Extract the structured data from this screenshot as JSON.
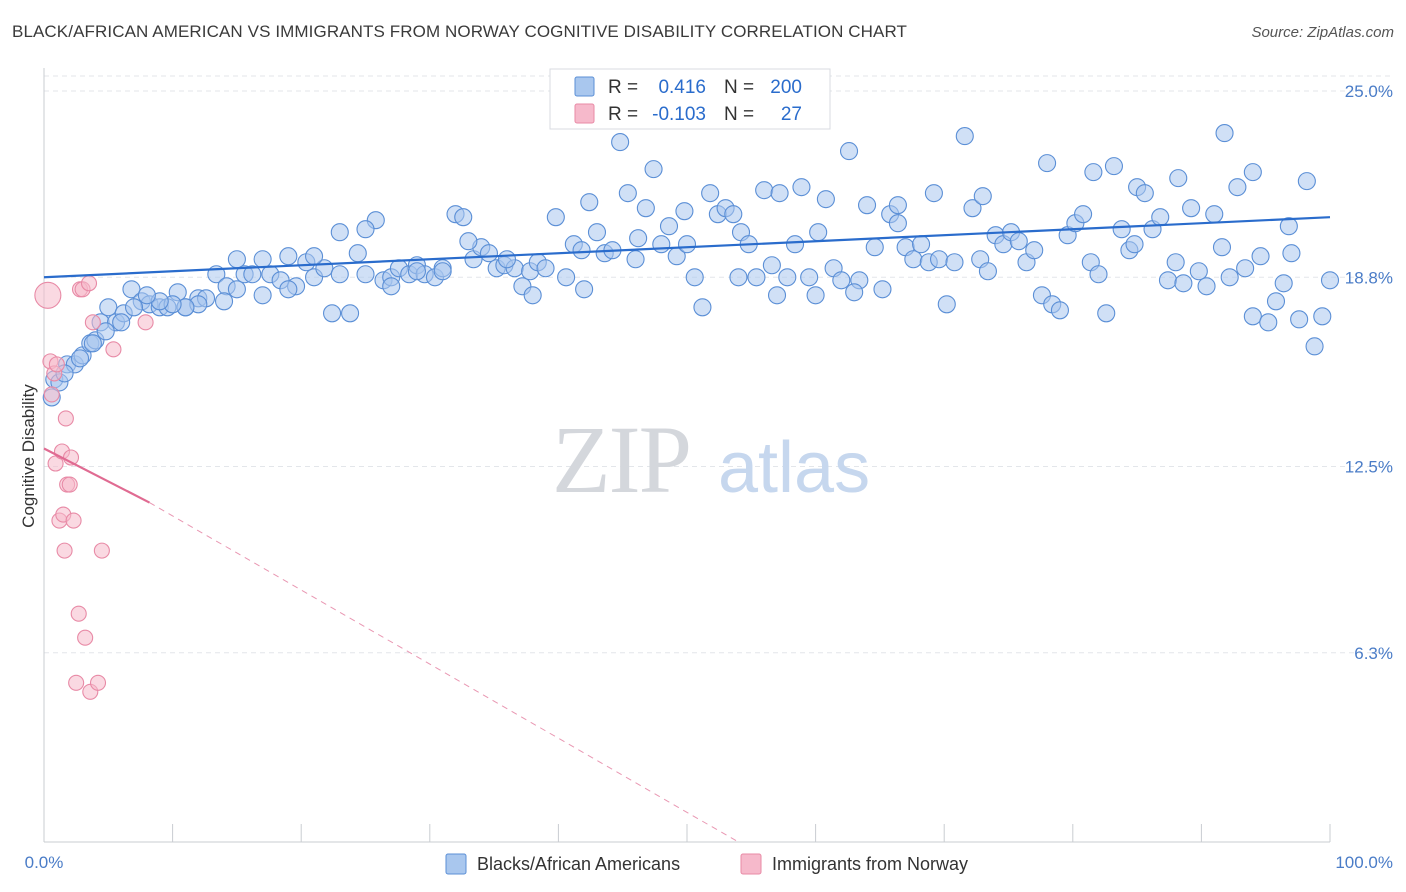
{
  "title": "BLACK/AFRICAN AMERICAN VS IMMIGRANTS FROM NORWAY COGNITIVE DISABILITY CORRELATION CHART",
  "source": "Source: ZipAtlas.com",
  "watermark": {
    "zip": "ZIP",
    "atlas": "atlas"
  },
  "colors": {
    "blue_fill": "#a9c7ee",
    "blue_stroke": "#5b8fd6",
    "blue_line": "#2a6ccc",
    "pink_fill": "#f6b9cb",
    "pink_stroke": "#e88aa6",
    "pink_line": "#e06b92",
    "axis_text": "#4a7cc7",
    "grid": "#e3e6ea"
  },
  "legend": {
    "rows": [
      {
        "r_label": "R =",
        "r_value": "0.416",
        "n_label": "N =",
        "n_value": "200"
      },
      {
        "r_label": "R =",
        "r_value": "-0.103",
        "n_label": "N =",
        "n_value": "27"
      }
    ]
  },
  "bottom_legend": [
    "Blacks/African Americans",
    "Immigrants from Norway"
  ],
  "chart_data": {
    "type": "scatter",
    "ylabel": "Cognitive Disability",
    "xlim": [
      0,
      100
    ],
    "ylim": [
      0,
      25.5
    ],
    "x_tick_labels": [
      "0.0%",
      "100.0%"
    ],
    "y_ticks": [
      6.3,
      12.5,
      18.8,
      25.0
    ],
    "y_tick_labels": [
      "6.3%",
      "12.5%",
      "18.8%",
      "25.0%"
    ],
    "grid": "horizontal dashed",
    "series": [
      {
        "name": "Blacks/African Americans",
        "r": 0.416,
        "n": 200,
        "trend": {
          "x": [
            0,
            100
          ],
          "y": [
            18.8,
            20.8
          ]
        },
        "points": [
          [
            0.8,
            15.4
          ],
          [
            0.6,
            14.8
          ],
          [
            1.2,
            15.3
          ],
          [
            1.8,
            15.9
          ],
          [
            2.4,
            15.9
          ],
          [
            3.0,
            16.2
          ],
          [
            3.6,
            16.6
          ],
          [
            4.0,
            16.7
          ],
          [
            4.4,
            17.3
          ],
          [
            5.0,
            17.8
          ],
          [
            5.6,
            17.3
          ],
          [
            6.2,
            17.6
          ],
          [
            6.8,
            18.4
          ],
          [
            7.6,
            18.0
          ],
          [
            8.2,
            17.9
          ],
          [
            9.0,
            17.8
          ],
          [
            9.6,
            17.8
          ],
          [
            10.4,
            18.3
          ],
          [
            11.0,
            17.8
          ],
          [
            12.0,
            18.1
          ],
          [
            12.6,
            18.1
          ],
          [
            13.4,
            18.9
          ],
          [
            14.2,
            18.5
          ],
          [
            15.0,
            19.4
          ],
          [
            15.6,
            18.9
          ],
          [
            16.2,
            18.9
          ],
          [
            17.0,
            18.2
          ],
          [
            17.6,
            18.9
          ],
          [
            18.4,
            18.7
          ],
          [
            19.0,
            19.5
          ],
          [
            19.6,
            18.5
          ],
          [
            20.4,
            19.3
          ],
          [
            21.0,
            18.8
          ],
          [
            21.8,
            19.1
          ],
          [
            22.4,
            17.6
          ],
          [
            23.0,
            18.9
          ],
          [
            23.8,
            17.6
          ],
          [
            24.4,
            19.6
          ],
          [
            25.0,
            18.9
          ],
          [
            25.8,
            20.7
          ],
          [
            26.4,
            18.7
          ],
          [
            27.0,
            18.8
          ],
          [
            27.6,
            19.1
          ],
          [
            28.4,
            18.9
          ],
          [
            29.0,
            19.2
          ],
          [
            29.6,
            18.9
          ],
          [
            30.4,
            18.8
          ],
          [
            31.0,
            19.1
          ],
          [
            32.0,
            20.9
          ],
          [
            32.6,
            20.8
          ],
          [
            33.4,
            19.4
          ],
          [
            34.0,
            19.8
          ],
          [
            34.6,
            19.6
          ],
          [
            35.2,
            19.1
          ],
          [
            35.8,
            19.2
          ],
          [
            36.6,
            19.1
          ],
          [
            37.2,
            18.5
          ],
          [
            37.8,
            19.0
          ],
          [
            38.4,
            19.3
          ],
          [
            39.0,
            19.1
          ],
          [
            39.8,
            20.8
          ],
          [
            40.6,
            18.8
          ],
          [
            41.2,
            19.9
          ],
          [
            41.8,
            19.7
          ],
          [
            42.4,
            21.3
          ],
          [
            43.0,
            20.3
          ],
          [
            43.6,
            19.6
          ],
          [
            44.2,
            19.7
          ],
          [
            44.8,
            23.3
          ],
          [
            45.4,
            21.6
          ],
          [
            46.2,
            20.1
          ],
          [
            46.8,
            21.1
          ],
          [
            47.4,
            22.4
          ],
          [
            48.0,
            19.9
          ],
          [
            48.6,
            20.5
          ],
          [
            49.2,
            19.5
          ],
          [
            49.8,
            21.0
          ],
          [
            50.6,
            18.8
          ],
          [
            51.2,
            17.8
          ],
          [
            51.8,
            21.6
          ],
          [
            52.4,
            20.9
          ],
          [
            53.0,
            21.1
          ],
          [
            53.6,
            20.9
          ],
          [
            54.2,
            20.3
          ],
          [
            54.8,
            19.9
          ],
          [
            55.4,
            18.8
          ],
          [
            56.0,
            21.7
          ],
          [
            56.6,
            19.2
          ],
          [
            57.2,
            21.6
          ],
          [
            57.8,
            18.8
          ],
          [
            58.4,
            19.9
          ],
          [
            58.9,
            21.8
          ],
          [
            59.5,
            18.8
          ],
          [
            60.2,
            20.3
          ],
          [
            60.8,
            21.4
          ],
          [
            61.4,
            19.1
          ],
          [
            62.0,
            18.7
          ],
          [
            62.6,
            23.0
          ],
          [
            63.4,
            18.7
          ],
          [
            64.0,
            21.2
          ],
          [
            64.6,
            19.8
          ],
          [
            65.2,
            18.4
          ],
          [
            65.8,
            20.9
          ],
          [
            66.4,
            21.2
          ],
          [
            67.0,
            19.8
          ],
          [
            67.6,
            19.4
          ],
          [
            68.2,
            19.9
          ],
          [
            68.8,
            19.3
          ],
          [
            69.6,
            19.4
          ],
          [
            70.2,
            17.9
          ],
          [
            70.8,
            19.3
          ],
          [
            71.6,
            23.5
          ],
          [
            72.2,
            21.1
          ],
          [
            72.8,
            19.4
          ],
          [
            73.4,
            19.0
          ],
          [
            74.0,
            20.2
          ],
          [
            74.6,
            19.9
          ],
          [
            75.2,
            20.3
          ],
          [
            75.8,
            20.0
          ],
          [
            76.4,
            19.3
          ],
          [
            77.0,
            19.7
          ],
          [
            77.6,
            18.2
          ],
          [
            78.4,
            17.9
          ],
          [
            79.0,
            17.7
          ],
          [
            79.6,
            20.2
          ],
          [
            80.2,
            20.6
          ],
          [
            80.8,
            20.9
          ],
          [
            81.4,
            19.3
          ],
          [
            82.0,
            18.9
          ],
          [
            82.6,
            17.6
          ],
          [
            83.2,
            22.5
          ],
          [
            83.8,
            20.4
          ],
          [
            84.4,
            19.7
          ],
          [
            85.0,
            21.8
          ],
          [
            85.6,
            21.6
          ],
          [
            86.2,
            20.4
          ],
          [
            86.8,
            20.8
          ],
          [
            87.4,
            18.7
          ],
          [
            88.0,
            19.3
          ],
          [
            88.6,
            18.6
          ],
          [
            89.2,
            21.1
          ],
          [
            89.8,
            19.0
          ],
          [
            90.4,
            18.5
          ],
          [
            91.0,
            20.9
          ],
          [
            91.6,
            19.8
          ],
          [
            92.2,
            18.8
          ],
          [
            92.8,
            21.8
          ],
          [
            93.4,
            19.1
          ],
          [
            94.0,
            17.5
          ],
          [
            94.6,
            19.5
          ],
          [
            95.2,
            17.3
          ],
          [
            95.8,
            18.0
          ],
          [
            96.4,
            18.6
          ],
          [
            97.0,
            19.6
          ],
          [
            97.6,
            17.4
          ],
          [
            98.2,
            22.0
          ],
          [
            98.8,
            16.5
          ],
          [
            99.4,
            17.5
          ],
          [
            100.0,
            18.7
          ],
          [
            96.8,
            20.5
          ],
          [
            94.0,
            22.3
          ],
          [
            91.8,
            23.6
          ],
          [
            88.2,
            22.1
          ],
          [
            84.8,
            19.9
          ],
          [
            81.6,
            22.3
          ],
          [
            78.0,
            22.6
          ],
          [
            73.0,
            21.5
          ],
          [
            69.2,
            21.6
          ],
          [
            66.4,
            20.6
          ],
          [
            63.0,
            18.3
          ],
          [
            60.0,
            18.2
          ],
          [
            57.0,
            18.2
          ],
          [
            54.0,
            18.8
          ],
          [
            50.0,
            19.9
          ],
          [
            46.0,
            19.4
          ],
          [
            42.0,
            18.4
          ],
          [
            38.0,
            18.2
          ],
          [
            36.0,
            19.4
          ],
          [
            33.0,
            20.0
          ],
          [
            31.0,
            19.0
          ],
          [
            29.0,
            19.0
          ],
          [
            27.0,
            18.5
          ],
          [
            25.0,
            20.4
          ],
          [
            23.0,
            20.3
          ],
          [
            21.0,
            19.5
          ],
          [
            19.0,
            18.4
          ],
          [
            17.0,
            19.4
          ],
          [
            15.0,
            18.4
          ],
          [
            14.0,
            18.0
          ],
          [
            12.0,
            17.9
          ],
          [
            11.0,
            17.8
          ],
          [
            10.0,
            17.9
          ],
          [
            9.0,
            18.0
          ],
          [
            8.0,
            18.2
          ],
          [
            7.0,
            17.8
          ],
          [
            6.0,
            17.3
          ],
          [
            4.8,
            17.0
          ],
          [
            3.8,
            16.6
          ],
          [
            2.8,
            16.1
          ],
          [
            1.6,
            15.6
          ]
        ]
      },
      {
        "name": "Immigrants from Norway",
        "r": -0.103,
        "n": 27,
        "trend": {
          "x": [
            0,
            8.2
          ],
          "y": [
            13.1,
            11.3
          ]
        },
        "trend_dashed": {
          "x": [
            8.2,
            54.0
          ],
          "y": [
            11.3,
            0.0
          ]
        },
        "points": [
          [
            0.3,
            18.2
          ],
          [
            0.5,
            16.0
          ],
          [
            0.6,
            14.9
          ],
          [
            0.8,
            15.6
          ],
          [
            0.9,
            12.6
          ],
          [
            1.0,
            15.9
          ],
          [
            1.2,
            10.7
          ],
          [
            1.4,
            13.0
          ],
          [
            1.5,
            10.9
          ],
          [
            1.6,
            9.7
          ],
          [
            1.7,
            14.1
          ],
          [
            1.8,
            11.9
          ],
          [
            2.0,
            11.9
          ],
          [
            2.1,
            12.8
          ],
          [
            2.3,
            10.7
          ],
          [
            2.5,
            5.3
          ],
          [
            2.7,
            7.6
          ],
          [
            2.8,
            18.4
          ],
          [
            3.0,
            18.4
          ],
          [
            3.2,
            6.8
          ],
          [
            3.5,
            18.6
          ],
          [
            3.6,
            5.0
          ],
          [
            3.8,
            17.3
          ],
          [
            4.2,
            5.3
          ],
          [
            4.5,
            9.7
          ],
          [
            5.4,
            16.4
          ],
          [
            7.9,
            17.3
          ]
        ]
      }
    ]
  }
}
